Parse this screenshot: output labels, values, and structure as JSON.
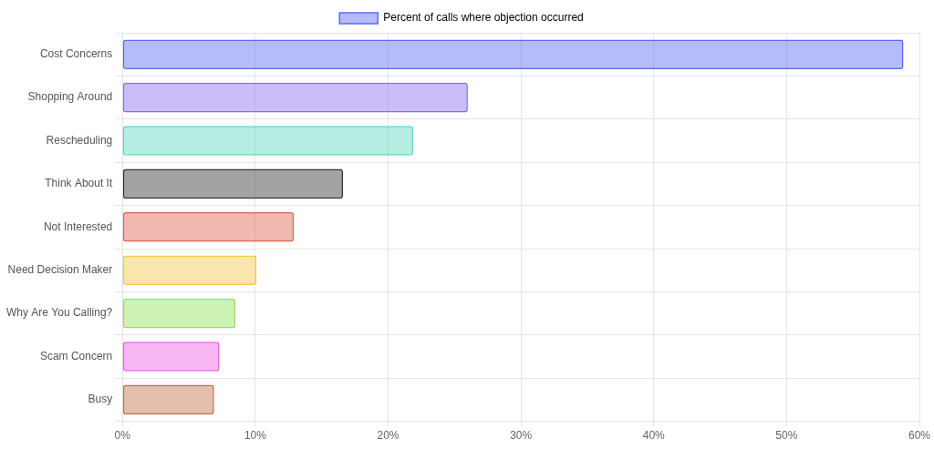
{
  "chart_data": {
    "type": "bar",
    "orientation": "horizontal",
    "categories": [
      "Cost Concerns",
      "Shopping Around",
      "Rescheduling",
      "Think About It",
      "Not Interested",
      "Need Decision Maker",
      "Why Are You Calling?",
      "Scam Concern",
      "Busy"
    ],
    "series": [
      {
        "name": "Percent of calls where objection occurred",
        "values": [
          58.8,
          26.0,
          21.9,
          16.6,
          12.9,
          10.1,
          8.5,
          7.3,
          6.9
        ],
        "colors": [
          "#5b6cf0",
          "#8a6cf0",
          "#5fd6bf",
          "#333333",
          "#e0624f",
          "#f5c84a",
          "#8fe35c",
          "#ea5fe6",
          "#c0704a"
        ]
      }
    ],
    "xlim": [
      0,
      60
    ],
    "xticks": [
      {
        "value": 0,
        "label": "0%"
      },
      {
        "value": 10,
        "label": "10%"
      },
      {
        "value": 20,
        "label": "20%"
      },
      {
        "value": 30,
        "label": "30%"
      },
      {
        "value": 40,
        "label": "40%"
      },
      {
        "value": 50,
        "label": "50%"
      },
      {
        "value": 60,
        "label": "60%"
      }
    ],
    "grid": true,
    "legend": "top"
  }
}
